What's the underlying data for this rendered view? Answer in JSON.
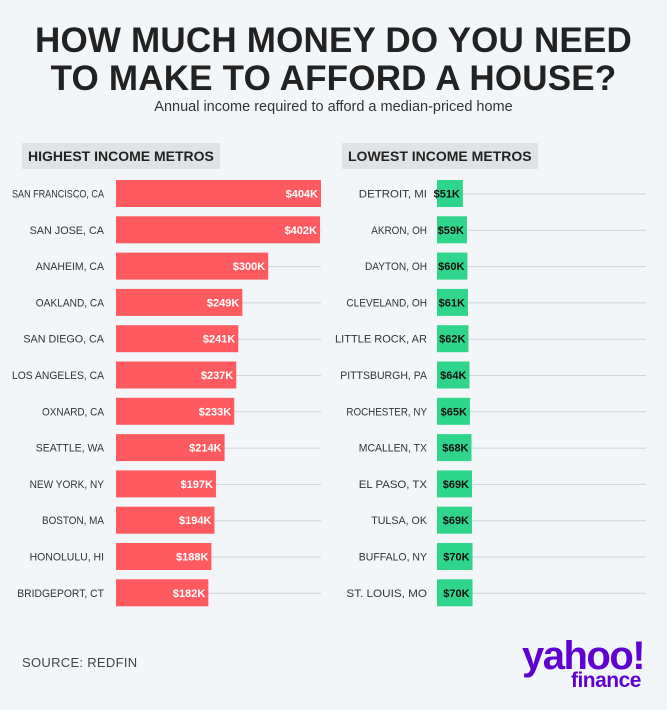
{
  "title_line1": "HOW MUCH MONEY DO YOU NEED",
  "title_line2": "TO MAKE TO AFFORD A HOUSE?",
  "subtitle": "Annual income required to afford a median-priced home",
  "source": "SOURCE: REDFIN",
  "logo": {
    "word": "yahoo!",
    "sub": "finance"
  },
  "colors": {
    "high": "#ff5a5f",
    "low": "#2fd58a",
    "logo": "#5f01d1",
    "header_bg": "#dfe3e6"
  },
  "chart_data": [
    {
      "type": "bar",
      "orientation": "horizontal",
      "title": "HIGHEST INCOME METROS",
      "categories": [
        "SAN FRANCISCO, CA",
        "SAN JOSE, CA",
        "ANAHEIM, CA",
        "OAKLAND, CA",
        "SAN DIEGO, CA",
        "LOS ANGELES, CA",
        "OXNARD, CA",
        "SEATTLE, WA",
        "NEW YORK, NY",
        "BOSTON, MA",
        "HONOLULU, HI",
        "BRIDGEPORT, CT"
      ],
      "values": [
        404,
        402,
        300,
        249,
        241,
        237,
        233,
        214,
        197,
        194,
        188,
        182
      ],
      "value_labels": [
        "$404K",
        "$402K",
        "$300K",
        "$249K",
        "$241K",
        "$237K",
        "$233K",
        "$214K",
        "$197K",
        "$194K",
        "$188K",
        "$182K"
      ],
      "color": "#ff5a5f",
      "xlim": [
        0,
        404
      ]
    },
    {
      "type": "bar",
      "orientation": "horizontal",
      "title": "LOWEST INCOME METROS",
      "categories": [
        "DETROIT, MI",
        "AKRON, OH",
        "DAYTON, OH",
        "CLEVELAND, OH",
        "LITTLE ROCK, AR",
        "PITTSBURGH, PA",
        "ROCHESTER, NY",
        "MCALLEN, TX",
        "EL PASO, TX",
        "TULSA, OK",
        "BUFFALO, NY",
        "ST. LOUIS, MO"
      ],
      "values": [
        51,
        59,
        60,
        61,
        62,
        64,
        65,
        68,
        69,
        69,
        70,
        70
      ],
      "value_labels": [
        "$51K",
        "$59K",
        "$60K",
        "$61K",
        "$62K",
        "$64K",
        "$65K",
        "$68K",
        "$69K",
        "$69K",
        "$70K",
        "$70K"
      ],
      "color": "#2fd58a",
      "xlim": [
        0,
        404
      ]
    }
  ]
}
